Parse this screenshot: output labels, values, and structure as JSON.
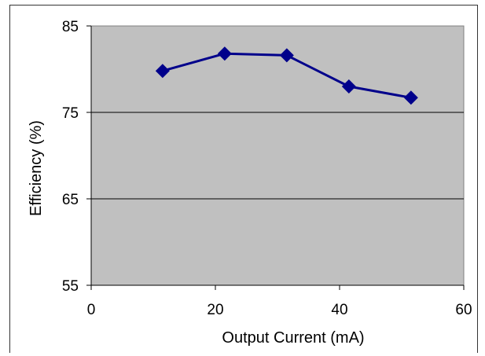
{
  "chart_data": {
    "type": "line",
    "title": "",
    "xlabel": "Output Current (mA)",
    "ylabel": "Efficiency (%)",
    "xlim": [
      0,
      60
    ],
    "ylim": [
      55,
      85
    ],
    "x_ticks": [
      "0",
      "20",
      "40",
      "60"
    ],
    "y_ticks": [
      "85",
      "75",
      "65",
      "55"
    ],
    "grid": "horizontal",
    "legend": "none",
    "series": [
      {
        "x": [
          11.5,
          21.5,
          31.5,
          41.5,
          51.5
        ],
        "values": [
          79.8,
          81.8,
          81.6,
          78.0,
          76.7
        ]
      }
    ],
    "colors": {
      "plot_background": "#c0c0c0",
      "series_line": "#00008b",
      "grid": "#000000"
    }
  }
}
